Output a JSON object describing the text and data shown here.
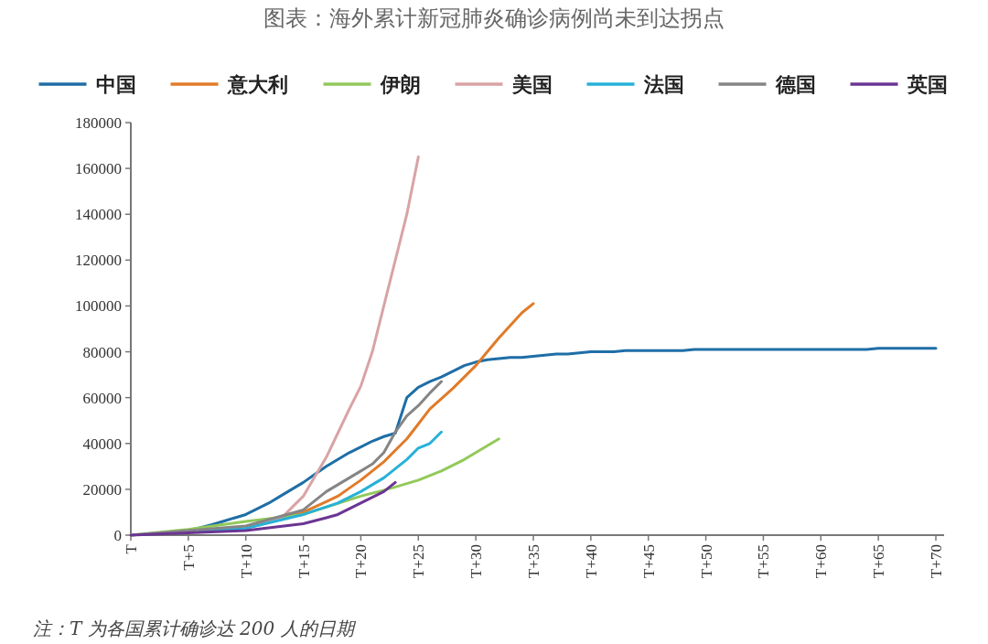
{
  "chart_data": {
    "type": "line",
    "title": "图表：海外累计新冠肺炎确诊病例尚未到达拐点",
    "annotations": [
      "注：T 为各国累计确诊达 200 人的日期"
    ],
    "legend": "top",
    "grid": false,
    "marker": "none",
    "line_style": "solid",
    "categories": [
      "T",
      null,
      null,
      null,
      null,
      "T+5",
      null,
      null,
      null,
      null,
      "T+10",
      null,
      null,
      null,
      null,
      "T+15",
      null,
      null,
      null,
      null,
      "T+20",
      null,
      null,
      null,
      null,
      "T+25",
      null,
      null,
      null,
      null,
      "T+30",
      null,
      null,
      null,
      null,
      "T+35",
      null,
      null,
      null,
      null,
      "T+40",
      null,
      null,
      null,
      null,
      "T+45",
      null,
      null,
      null,
      null,
      "T+50",
      null,
      null,
      null,
      null,
      "T+55",
      null,
      null,
      null,
      null,
      "T+60",
      null,
      null,
      null,
      null,
      "T+65",
      null,
      null,
      null,
      null,
      "T+70"
    ],
    "ylim": [
      0,
      180000
    ],
    "yticks": [
      0,
      20000,
      40000,
      60000,
      80000,
      100000,
      120000,
      140000,
      160000,
      180000
    ],
    "series": [
      {
        "name": "中国",
        "color": "#1f6ea6",
        "values": [
          null,
          null,
          null,
          null,
          null,
          2000,
          3200,
          4500,
          6000,
          7500,
          9000,
          11500,
          14000,
          17000,
          20000,
          23000,
          26500,
          30000,
          33000,
          36000,
          38500,
          41000,
          43000,
          44500,
          60000,
          64500,
          67000,
          69000,
          71500,
          74000,
          75500,
          76500,
          77000,
          77500,
          77500,
          78000,
          78500,
          79000,
          79000,
          79500,
          80000,
          80000,
          80000,
          80500,
          80500,
          80500,
          80500,
          80500,
          80500,
          81000,
          81000,
          81000,
          81000,
          81000,
          81000,
          81000,
          81000,
          81000,
          81000,
          81000,
          81000,
          81000,
          81000,
          81000,
          81000,
          81500,
          81500,
          81500,
          81500,
          81500,
          81500
        ]
      },
      {
        "name": "意大利",
        "color": "#e07b28",
        "values": [
          null,
          null,
          null,
          null,
          null,
          null,
          null,
          null,
          null,
          null,
          null,
          null,
          null,
          7500,
          8800,
          10000,
          12300,
          14600,
          17000,
          20500,
          24000,
          28000,
          32000,
          37000,
          42000,
          48500,
          55000,
          59500,
          64000,
          69000,
          74000,
          80000,
          86000,
          91500,
          97000,
          101000,
          null,
          null,
          null,
          null,
          null,
          null,
          null,
          null,
          null,
          null,
          null,
          null,
          null,
          null,
          null,
          null,
          null,
          null,
          null,
          null,
          null,
          null,
          null,
          null,
          null,
          null,
          null,
          null,
          null,
          null,
          null,
          null,
          null,
          null,
          null
        ]
      },
      {
        "name": "伊朗",
        "color": "#92c95a",
        "values": [
          0,
          500,
          1000,
          1500,
          2000,
          2500,
          3200,
          3900,
          4600,
          5300,
          6000,
          6600,
          7200,
          7800,
          8400,
          9000,
          10600,
          12200,
          13800,
          15400,
          17000,
          18300,
          19600,
          21000,
          22500,
          24000,
          26000,
          28000,
          30500,
          33000,
          36000,
          39000,
          42000,
          null,
          null,
          null,
          null,
          null,
          null,
          null,
          null,
          null,
          null,
          null,
          null,
          null,
          null,
          null,
          null,
          null,
          null,
          null,
          null,
          null,
          null,
          null,
          null,
          null,
          null,
          null,
          null,
          null,
          null,
          null,
          null,
          null,
          null,
          null,
          null,
          null,
          null
        ]
      },
      {
        "name": "美国",
        "color": "#d9a3a5",
        "values": [
          null,
          null,
          null,
          null,
          null,
          null,
          null,
          null,
          null,
          null,
          3000,
          4300,
          5600,
          7000,
          12000,
          17000,
          25500,
          34000,
          44500,
          55000,
          65000,
          80000,
          100000,
          120000,
          140000,
          165000,
          null,
          null,
          null,
          null,
          null,
          null,
          null,
          null,
          null,
          null,
          null,
          null,
          null,
          null,
          null,
          null,
          null,
          null,
          null,
          null,
          null,
          null,
          null,
          null,
          null,
          null,
          null,
          null,
          null,
          null,
          null,
          null,
          null,
          null,
          null,
          null,
          null,
          null,
          null,
          null,
          null,
          null,
          null,
          null,
          null
        ]
      },
      {
        "name": "法国",
        "color": "#27b1d8",
        "values": [
          null,
          null,
          null,
          null,
          null,
          null,
          1800,
          2100,
          2400,
          2700,
          3000,
          4200,
          5400,
          6600,
          7800,
          9000,
          10700,
          12300,
          14000,
          16500,
          19000,
          22000,
          25000,
          29000,
          33000,
          38000,
          40000,
          45000,
          null,
          null,
          null,
          null,
          null,
          null,
          null,
          null,
          null,
          null,
          null,
          null,
          null,
          null,
          null,
          null,
          null,
          null,
          null,
          null,
          null,
          null,
          null,
          null,
          null,
          null,
          null,
          null,
          null,
          null,
          null,
          null,
          null,
          null,
          null,
          null,
          null,
          null,
          null,
          null,
          null,
          null,
          null
        ]
      },
      {
        "name": "德国",
        "color": "#858585",
        "values": [
          0,
          400,
          800,
          1200,
          1600,
          2000,
          2400,
          2800,
          3200,
          3600,
          4000,
          5400,
          6800,
          8200,
          9600,
          11000,
          15000,
          19000,
          22000,
          25000,
          28000,
          31000,
          36000,
          45000,
          52000,
          56500,
          62000,
          67000,
          null,
          null,
          null,
          null,
          null,
          null,
          null,
          null,
          null,
          null,
          null,
          null,
          null,
          null,
          null,
          null,
          null,
          null,
          null,
          null,
          null,
          null,
          null,
          null,
          null,
          null,
          null,
          null,
          null,
          null,
          null,
          null,
          null,
          null,
          null,
          null,
          null,
          null,
          null,
          null,
          null,
          null,
          null
        ]
      },
      {
        "name": "英国",
        "color": "#6a3593",
        "values": [
          0,
          200,
          400,
          600,
          800,
          1000,
          1200,
          1400,
          1600,
          1800,
          2000,
          2600,
          3200,
          3800,
          4400,
          5000,
          6300,
          7600,
          9000,
          11500,
          14000,
          16500,
          19000,
          23000,
          null,
          null,
          null,
          null,
          null,
          null,
          null,
          null,
          null,
          null,
          null,
          null,
          null,
          null,
          null,
          null,
          null,
          null,
          null,
          null,
          null,
          null,
          null,
          null,
          null,
          null,
          null,
          null,
          null,
          null,
          null,
          null,
          null,
          null,
          null,
          null,
          null,
          null,
          null,
          null,
          null,
          null,
          null,
          null,
          null,
          null,
          null
        ]
      }
    ]
  }
}
